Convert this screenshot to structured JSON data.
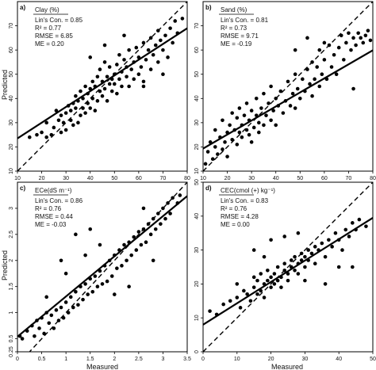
{
  "axis_labels": {
    "ylabel": "Predicted",
    "xlabel": "Measured"
  },
  "chart_data": [
    {
      "type": "scatter",
      "panel": "a)",
      "title": "Clay (%)",
      "stats": [
        "Lin's Con. = 0.85",
        "R² = 0.77",
        "RMSE = 6.85",
        "ME = 0.20"
      ],
      "xlim": [
        10,
        80
      ],
      "ylim": [
        10,
        80
      ],
      "xticks": [
        10,
        20,
        30,
        40,
        50,
        60,
        70,
        80
      ],
      "yticks": [
        10,
        20,
        30,
        40,
        50,
        60,
        70
      ],
      "fit": {
        "slope": 0.65,
        "intercept": 17.0
      },
      "one_to_one": true,
      "points": [
        [
          15,
          24
        ],
        [
          18,
          25
        ],
        [
          20,
          26
        ],
        [
          22,
          24
        ],
        [
          22,
          30
        ],
        [
          24,
          25
        ],
        [
          25,
          28
        ],
        [
          26,
          35
        ],
        [
          27,
          31
        ],
        [
          28,
          26
        ],
        [
          28,
          33
        ],
        [
          29,
          30
        ],
        [
          30,
          27
        ],
        [
          30,
          34
        ],
        [
          31,
          37
        ],
        [
          32,
          31
        ],
        [
          32,
          35
        ],
        [
          33,
          29
        ],
        [
          33,
          38
        ],
        [
          34,
          36
        ],
        [
          34,
          41
        ],
        [
          35,
          30
        ],
        [
          35,
          39
        ],
        [
          36,
          33
        ],
        [
          36,
          43
        ],
        [
          37,
          36
        ],
        [
          37,
          40
        ],
        [
          38,
          34
        ],
        [
          38,
          45
        ],
        [
          39,
          38
        ],
        [
          39,
          42
        ],
        [
          40,
          36
        ],
        [
          40,
          44
        ],
        [
          41,
          40
        ],
        [
          41,
          47
        ],
        [
          42,
          35
        ],
        [
          42,
          45
        ],
        [
          43,
          39
        ],
        [
          43,
          49
        ],
        [
          44,
          43
        ],
        [
          44,
          52
        ],
        [
          45,
          41
        ],
        [
          45,
          47
        ],
        [
          46,
          44
        ],
        [
          46,
          55
        ],
        [
          47,
          39
        ],
        [
          47,
          49
        ],
        [
          48,
          46
        ],
        [
          48,
          53
        ],
        [
          49,
          43
        ],
        [
          49,
          48
        ],
        [
          50,
          50
        ],
        [
          50,
          46
        ],
        [
          51,
          54
        ],
        [
          51,
          42
        ],
        [
          52,
          48
        ],
        [
          52,
          58
        ],
        [
          53,
          51
        ],
        [
          53,
          45
        ],
        [
          54,
          56
        ],
        [
          55,
          49
        ],
        [
          55,
          53
        ],
        [
          56,
          45
        ],
        [
          56,
          60
        ],
        [
          57,
          52
        ],
        [
          58,
          55
        ],
        [
          58,
          48
        ],
        [
          59,
          61
        ],
        [
          60,
          50
        ],
        [
          60,
          57
        ],
        [
          61,
          53
        ],
        [
          62,
          63
        ],
        [
          62,
          47
        ],
        [
          63,
          56
        ],
        [
          64,
          60
        ],
        [
          65,
          52
        ],
        [
          65,
          65
        ],
        [
          66,
          58
        ],
        [
          67,
          62
        ],
        [
          68,
          55
        ],
        [
          68,
          68
        ],
        [
          69,
          64
        ],
        [
          70,
          60
        ],
        [
          71,
          66
        ],
        [
          72,
          57
        ],
        [
          73,
          69
        ],
        [
          74,
          63
        ],
        [
          75,
          72
        ],
        [
          76,
          67
        ],
        [
          78,
          73
        ],
        [
          46,
          62
        ],
        [
          40,
          57
        ],
        [
          54,
          66
        ],
        [
          62,
          45
        ],
        [
          70,
          50
        ]
      ]
    },
    {
      "type": "scatter",
      "panel": "b)",
      "title": "Sand (%)",
      "stats": [
        "Lin's Con. = 0.81",
        "R² = 0.73",
        "RMSE = 9.71",
        "ME = -0.19"
      ],
      "xlim": [
        10,
        80
      ],
      "ylim": [
        10,
        80
      ],
      "xticks": [
        10,
        20,
        30,
        40,
        50,
        60,
        70,
        80
      ],
      "yticks": [
        10,
        20,
        30,
        40,
        50,
        60,
        70
      ],
      "fit": {
        "slope": 0.58,
        "intercept": 13.5
      },
      "one_to_one": true,
      "points": [
        [
          11,
          13
        ],
        [
          12,
          18
        ],
        [
          13,
          22
        ],
        [
          14,
          15
        ],
        [
          15,
          20
        ],
        [
          15,
          27
        ],
        [
          16,
          17
        ],
        [
          17,
          24
        ],
        [
          18,
          19
        ],
        [
          18,
          31
        ],
        [
          19,
          22
        ],
        [
          20,
          26
        ],
        [
          20,
          16
        ],
        [
          21,
          29
        ],
        [
          22,
          23
        ],
        [
          22,
          34
        ],
        [
          23,
          27
        ],
        [
          24,
          21
        ],
        [
          24,
          32
        ],
        [
          25,
          26
        ],
        [
          25,
          36
        ],
        [
          26,
          24
        ],
        [
          26,
          29
        ],
        [
          27,
          33
        ],
        [
          28,
          27
        ],
        [
          28,
          38
        ],
        [
          29,
          25
        ],
        [
          29,
          31
        ],
        [
          30,
          35
        ],
        [
          30,
          22
        ],
        [
          31,
          28
        ],
        [
          32,
          33
        ],
        [
          32,
          40
        ],
        [
          33,
          26
        ],
        [
          33,
          30
        ],
        [
          34,
          36
        ],
        [
          35,
          29
        ],
        [
          35,
          42
        ],
        [
          36,
          33
        ],
        [
          37,
          38
        ],
        [
          38,
          31
        ],
        [
          38,
          45
        ],
        [
          39,
          35
        ],
        [
          40,
          40
        ],
        [
          40,
          29
        ],
        [
          41,
          37
        ],
        [
          42,
          43
        ],
        [
          43,
          34
        ],
        [
          44,
          39
        ],
        [
          45,
          47
        ],
        [
          46,
          37
        ],
        [
          47,
          42
        ],
        [
          48,
          36
        ],
        [
          48,
          50
        ],
        [
          49,
          44
        ],
        [
          50,
          40
        ],
        [
          51,
          48
        ],
        [
          52,
          43
        ],
        [
          53,
          52
        ],
        [
          54,
          46
        ],
        [
          55,
          41
        ],
        [
          55,
          55
        ],
        [
          56,
          48
        ],
        [
          57,
          53
        ],
        [
          58,
          45
        ],
        [
          58,
          60
        ],
        [
          59,
          50
        ],
        [
          60,
          56
        ],
        [
          61,
          48
        ],
        [
          62,
          62
        ],
        [
          63,
          53
        ],
        [
          64,
          58
        ],
        [
          65,
          50
        ],
        [
          66,
          61
        ],
        [
          67,
          66
        ],
        [
          68,
          56
        ],
        [
          69,
          63
        ],
        [
          70,
          67
        ],
        [
          71,
          60
        ],
        [
          72,
          65
        ],
        [
          73,
          62
        ],
        [
          74,
          67
        ],
        [
          75,
          65
        ],
        [
          76,
          63
        ],
        [
          77,
          66
        ],
        [
          78,
          68
        ],
        [
          79,
          64
        ],
        [
          53,
          65
        ],
        [
          48,
          60
        ],
        [
          72,
          44
        ],
        [
          60,
          63
        ]
      ]
    },
    {
      "type": "scatter",
      "panel": "c)",
      "title": "ECe(dS m⁻¹)",
      "stats": [
        "Lin's Con. = 0.86",
        "R² = 0.76",
        "RMSE = 0.44",
        "ME = -0.03"
      ],
      "xlim": [
        0,
        3.5
      ],
      "ylim": [
        0.25,
        3.5
      ],
      "xticks": [
        0,
        0.5,
        1,
        1.5,
        2,
        2.5,
        3,
        3.5
      ],
      "yticks": [
        0.25,
        0.5,
        1,
        1.5,
        2,
        2.5,
        3
      ],
      "fit": {
        "slope": 0.77,
        "intercept": 0.54
      },
      "one_to_one": true,
      "points": [
        [
          0.05,
          0.55
        ],
        [
          0.1,
          0.5
        ],
        [
          0.2,
          0.65
        ],
        [
          0.3,
          0.75
        ],
        [
          0.35,
          0.55
        ],
        [
          0.4,
          0.85
        ],
        [
          0.45,
          0.7
        ],
        [
          0.5,
          0.9
        ],
        [
          0.55,
          0.6
        ],
        [
          0.6,
          1.0
        ],
        [
          0.65,
          0.8
        ],
        [
          0.7,
          0.95
        ],
        [
          0.75,
          0.7
        ],
        [
          0.8,
          1.05
        ],
        [
          0.85,
          0.85
        ],
        [
          0.9,
          1.1
        ],
        [
          0.95,
          0.9
        ],
        [
          1.0,
          1.2
        ],
        [
          1.05,
          1.0
        ],
        [
          1.1,
          1.3
        ],
        [
          1.15,
          1.1
        ],
        [
          1.2,
          1.4
        ],
        [
          1.25,
          1.15
        ],
        [
          1.3,
          1.5
        ],
        [
          1.35,
          1.25
        ],
        [
          1.4,
          1.55
        ],
        [
          1.45,
          1.35
        ],
        [
          1.5,
          1.65
        ],
        [
          1.55,
          1.4
        ],
        [
          1.6,
          1.7
        ],
        [
          1.65,
          1.5
        ],
        [
          1.7,
          1.8
        ],
        [
          1.75,
          1.55
        ],
        [
          1.8,
          1.9
        ],
        [
          1.85,
          1.6
        ],
        [
          1.9,
          2.0
        ],
        [
          1.95,
          1.7
        ],
        [
          2.0,
          2.1
        ],
        [
          2.05,
          1.85
        ],
        [
          2.1,
          2.2
        ],
        [
          2.15,
          1.9
        ],
        [
          2.2,
          2.3
        ],
        [
          2.25,
          2.0
        ],
        [
          2.3,
          2.35
        ],
        [
          2.35,
          2.1
        ],
        [
          2.4,
          2.45
        ],
        [
          2.45,
          2.2
        ],
        [
          2.5,
          2.55
        ],
        [
          2.55,
          2.3
        ],
        [
          2.6,
          2.6
        ],
        [
          2.65,
          2.35
        ],
        [
          2.7,
          2.7
        ],
        [
          2.75,
          2.5
        ],
        [
          2.8,
          2.8
        ],
        [
          2.85,
          2.6
        ],
        [
          2.9,
          2.9
        ],
        [
          2.95,
          2.7
        ],
        [
          3.0,
          3.0
        ],
        [
          3.05,
          2.8
        ],
        [
          3.1,
          3.1
        ],
        [
          3.15,
          2.9
        ],
        [
          3.2,
          3.2
        ],
        [
          3.3,
          3.1
        ],
        [
          3.35,
          3.25
        ],
        [
          1.2,
          2.5
        ],
        [
          0.9,
          2.0
        ],
        [
          1.5,
          2.6
        ],
        [
          2.0,
          1.35
        ],
        [
          2.3,
          1.5
        ],
        [
          1.7,
          2.3
        ],
        [
          0.6,
          1.3
        ],
        [
          2.8,
          2.0
        ],
        [
          1.0,
          1.75
        ],
        [
          1.4,
          2.1
        ],
        [
          2.6,
          3.0
        ]
      ]
    },
    {
      "type": "scatter",
      "panel": "d)",
      "title": "CEC(cmol (+) kg⁻¹)",
      "stats": [
        "Lin's Con. = 0.83",
        "R² = 0.76",
        "RMSE = 4.28",
        "ME = 0.00"
      ],
      "xlim": [
        0,
        50
      ],
      "ylim": [
        0,
        50
      ],
      "xticks": [
        0,
        10,
        20,
        30,
        40,
        50
      ],
      "yticks": [
        0,
        10,
        20,
        30,
        40,
        50
      ],
      "fit": {
        "slope": 0.63,
        "intercept": 8.0
      },
      "one_to_one": true,
      "points": [
        [
          2,
          12
        ],
        [
          4,
          11
        ],
        [
          6,
          14
        ],
        [
          8,
          15
        ],
        [
          10,
          16
        ],
        [
          11,
          13
        ],
        [
          12,
          18
        ],
        [
          13,
          17
        ],
        [
          14,
          15
        ],
        [
          15,
          19
        ],
        [
          15,
          22
        ],
        [
          16,
          17
        ],
        [
          16,
          21
        ],
        [
          17,
          18
        ],
        [
          17,
          23
        ],
        [
          18,
          20
        ],
        [
          18,
          16
        ],
        [
          19,
          21
        ],
        [
          19,
          24
        ],
        [
          20,
          19
        ],
        [
          20,
          22
        ],
        [
          21,
          23
        ],
        [
          21,
          20
        ],
        [
          22,
          21
        ],
        [
          22,
          25
        ],
        [
          23,
          22
        ],
        [
          23,
          19
        ],
        [
          24,
          24
        ],
        [
          24,
          26
        ],
        [
          25,
          23
        ],
        [
          25,
          21
        ],
        [
          26,
          25
        ],
        [
          26,
          27
        ],
        [
          27,
          24
        ],
        [
          27,
          28
        ],
        [
          28,
          26
        ],
        [
          28,
          23
        ],
        [
          29,
          27
        ],
        [
          29,
          29
        ],
        [
          30,
          25
        ],
        [
          30,
          28
        ],
        [
          31,
          27
        ],
        [
          31,
          30
        ],
        [
          32,
          29
        ],
        [
          33,
          26
        ],
        [
          33,
          31
        ],
        [
          34,
          30
        ],
        [
          35,
          32
        ],
        [
          36,
          28
        ],
        [
          37,
          33
        ],
        [
          38,
          31
        ],
        [
          39,
          35
        ],
        [
          40,
          33
        ],
        [
          41,
          30
        ],
        [
          42,
          36
        ],
        [
          43,
          34
        ],
        [
          44,
          38
        ],
        [
          45,
          36
        ],
        [
          46,
          39
        ],
        [
          48,
          37
        ],
        [
          15,
          30
        ],
        [
          18,
          28
        ],
        [
          36,
          20
        ],
        [
          40,
          25
        ],
        [
          44,
          25
        ],
        [
          10,
          20
        ],
        [
          20,
          33
        ],
        [
          24,
          34
        ],
        [
          28,
          35
        ],
        [
          30,
          21
        ]
      ]
    }
  ]
}
